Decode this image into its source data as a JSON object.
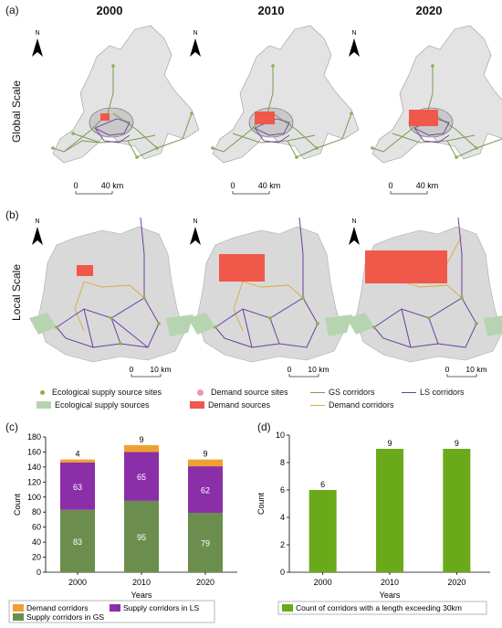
{
  "panels": {
    "a": "(a)",
    "b": "(b)",
    "c": "(c)",
    "d": "(d)"
  },
  "years": [
    "2000",
    "2010",
    "2020"
  ],
  "row_titles": {
    "global": "Global Scale",
    "local": "Local Scale"
  },
  "north": "N",
  "scalebars": {
    "global": {
      "zero": "0",
      "end": "40 km"
    },
    "local": {
      "zero": "0",
      "end": "10 km"
    }
  },
  "map_legend": {
    "eco_sites": "Ecological supply source sites",
    "demand_sites": "Demand source sites",
    "gs_corridors": "GS corridors",
    "ls_corridors": "LS corridors",
    "eco_sources": "Ecological supply sources",
    "demand_sources": "Demand sources",
    "demand_corridors": "Demand corridors"
  },
  "colors": {
    "eco_site": "#8bb04b",
    "demand_site": "#e89aa6",
    "gs": "#7a9a55",
    "ls": "#6b3fa0",
    "eco_source": "#b6d4b0",
    "demand_source": "#f0584a",
    "demand_corridor": "#e0a63a",
    "map_fill": "#d9d9d9",
    "stack_gs": "#6b8e4e",
    "stack_ls": "#8b2fa8",
    "stack_demand": "#f0a030",
    "bar_d": "#6aaa1a"
  },
  "chart_data": [
    {
      "type": "bar",
      "stacked": true,
      "categories": [
        "2000",
        "2010",
        "2020"
      ],
      "series": [
        {
          "name": "Supply corridors in GS",
          "values": [
            83,
            95,
            79
          ]
        },
        {
          "name": "Supply corridors in LS",
          "values": [
            63,
            65,
            62
          ]
        },
        {
          "name": "Demand corridors",
          "values": [
            4,
            9,
            9
          ]
        }
      ],
      "xlabel": "Years",
      "ylabel": "Count",
      "ylim": [
        0,
        180
      ],
      "yticks": [
        "0",
        "20",
        "40",
        "60",
        "80",
        "100",
        "120",
        "140",
        "160",
        "180"
      ],
      "legend_position": "bottom"
    },
    {
      "type": "bar",
      "categories": [
        "2000",
        "2010",
        "2020"
      ],
      "series": [
        {
          "name": "Count of corridors with a length exceeding 30km",
          "values": [
            6,
            9,
            9
          ]
        }
      ],
      "xlabel": "Years",
      "ylabel": "Count",
      "ylim": [
        0,
        10
      ],
      "yticks": [
        "0",
        "2",
        "4",
        "6",
        "8",
        "10"
      ],
      "legend_position": "bottom"
    }
  ]
}
